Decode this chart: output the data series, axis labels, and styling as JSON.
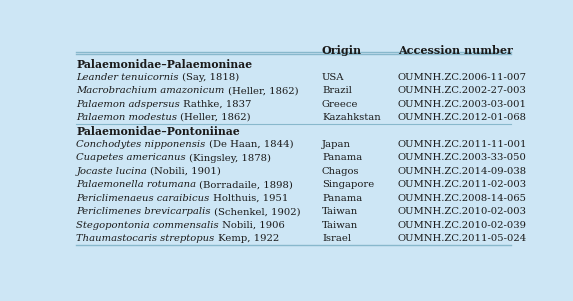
{
  "bg_color": "#cde6f5",
  "header": [
    "",
    "Origin",
    "Accession number"
  ],
  "rows": [
    {
      "type": "subheader",
      "text": "Palaemonidae–Palaemoninae"
    },
    {
      "type": "data",
      "species_italic": "Leander tenuicornis",
      "species_plain": " (Say, 1818)",
      "origin": "USA",
      "accession": "OUMNH.ZC.2006-11-007"
    },
    {
      "type": "data",
      "species_italic": "Macrobrachium amazonicum",
      "species_plain": " (Heller, 1862)",
      "origin": "Brazil",
      "accession": "OUMNH.ZC.2002-27-003"
    },
    {
      "type": "data",
      "species_italic": "Palaemon adspersus",
      "species_plain": " Rathke, 1837",
      "origin": "Greece",
      "accession": "OUMNH.ZC.2003-03-001"
    },
    {
      "type": "data",
      "species_italic": "Palaemon modestus",
      "species_plain": " (Heller, 1862)",
      "origin": "Kazahkstan",
      "accession": "OUMNH.ZC.2012-01-068"
    },
    {
      "type": "subheader",
      "text": "Palaemonidae–Pontoniinae"
    },
    {
      "type": "data",
      "species_italic": "Conchodytes nipponensis",
      "species_plain": " (De Haan, 1844)",
      "origin": "Japan",
      "accession": "OUMNH.ZC.2011-11-001"
    },
    {
      "type": "data",
      "species_italic": "Cuapetes americanus",
      "species_plain": " (Kingsley, 1878)",
      "origin": "Panama",
      "accession": "OUMNH.ZC.2003-33-050"
    },
    {
      "type": "data",
      "species_italic": "Jocaste lucina",
      "species_plain": " (Nobili, 1901)",
      "origin": "Chagos",
      "accession": "OUMNH.ZC.2014-09-038"
    },
    {
      "type": "data",
      "species_italic": "Palaemonella rotumana",
      "species_plain": " (Borradaile, 1898)",
      "origin": "Singapore",
      "accession": "OUMNH.ZC.2011-02-003"
    },
    {
      "type": "data",
      "species_italic": "Periclimenaeus caraibicus",
      "species_plain": " Holthuis, 1951",
      "origin": "Panama",
      "accession": "OUMNH.ZC.2008-14-065"
    },
    {
      "type": "data",
      "species_italic": "Periclimenes brevicarpalis",
      "species_plain": " (Schenkel, 1902)",
      "origin": "Taiwan",
      "accession": "OUMNH.ZC.2010-02-003"
    },
    {
      "type": "data",
      "species_italic": "Stegopontonia commensalis",
      "species_plain": " Nobili, 1906",
      "origin": "Taiwan",
      "accession": "OUMNH.ZC.2010-02-039"
    },
    {
      "type": "data",
      "species_italic": "Thaumastocaris streptopus",
      "species_plain": " Kemp, 1922",
      "origin": "Israel",
      "accession": "OUMNH.ZC.2011-05-024"
    }
  ],
  "font_size": 7.2,
  "header_font_size": 8.0,
  "subheader_font_size": 7.8,
  "text_color": "#1a1a1a",
  "line_color": "#88b8cc"
}
